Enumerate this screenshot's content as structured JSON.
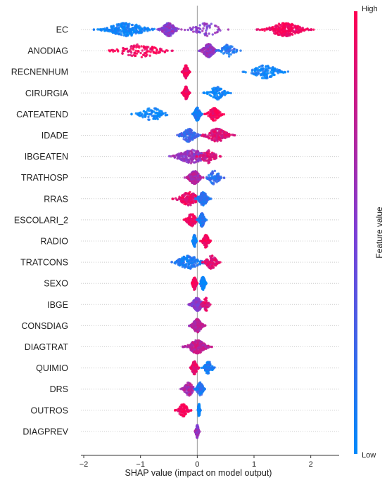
{
  "chart_data": {
    "type": "scatter",
    "subtype": "shap-beeswarm",
    "xlabel": "SHAP value (impact on model output)",
    "xlim": [
      -2.05,
      2.5
    ],
    "xticks": [
      -2,
      -1,
      0,
      1,
      2
    ],
    "tick_labels": [
      "−2",
      "−1",
      "0",
      "1",
      "2"
    ],
    "zero_line": true,
    "grid": false,
    "colorbar": {
      "label": "Feature value",
      "high_label": "High",
      "low_label": "Low",
      "low_color": "#008afb",
      "mid_color": "#7c3fd6",
      "high_color": "#ff0052"
    },
    "features": [
      {
        "name": "EC",
        "clusters": [
          {
            "x": -1.25,
            "spread": 0.4,
            "value": 0.05,
            "count": 260
          },
          {
            "x": -0.5,
            "spread": 0.14,
            "value": 0.55,
            "count": 190
          },
          {
            "x": 0.15,
            "spread": 0.3,
            "value": 0.55,
            "count": 60
          },
          {
            "x": 1.55,
            "spread": 0.35,
            "value": 0.97,
            "count": 260
          }
        ]
      },
      {
        "name": "ANODIAG",
        "clusters": [
          {
            "x": -1.0,
            "spread": 0.45,
            "value": 0.97,
            "count": 120
          },
          {
            "x": 0.2,
            "spread": 0.12,
            "value": 0.6,
            "count": 170
          },
          {
            "x": 0.55,
            "spread": 0.15,
            "value": 0.15,
            "count": 60
          }
        ]
      },
      {
        "name": "RECNENHUM",
        "clusters": [
          {
            "x": -0.2,
            "spread": 0.05,
            "value": 0.97,
            "count": 160
          },
          {
            "x": 1.2,
            "spread": 0.28,
            "value": 0.03,
            "count": 120
          }
        ]
      },
      {
        "name": "CIRURGIA",
        "clusters": [
          {
            "x": -0.2,
            "spread": 0.05,
            "value": 0.97,
            "count": 140
          },
          {
            "x": 0.35,
            "spread": 0.17,
            "value": 0.03,
            "count": 90
          }
        ]
      },
      {
        "name": "CATEATEND",
        "clusters": [
          {
            "x": -0.8,
            "spread": 0.25,
            "value": 0.03,
            "count": 90
          },
          {
            "x": 0.0,
            "spread": 0.06,
            "value": 0.08,
            "count": 200
          },
          {
            "x": 0.3,
            "spread": 0.12,
            "value": 0.97,
            "count": 110
          }
        ]
      },
      {
        "name": "IDADE",
        "clusters": [
          {
            "x": -0.15,
            "spread": 0.15,
            "value": 0.25,
            "count": 140
          },
          {
            "x": 0.35,
            "spread": 0.22,
            "value": 0.85,
            "count": 180
          }
        ]
      },
      {
        "name": "IBGEATEN",
        "clusters": [
          {
            "x": -0.1,
            "spread": 0.3,
            "value": 0.6,
            "count": 220
          },
          {
            "x": 0.2,
            "spread": 0.15,
            "value": 0.85,
            "count": 90
          }
        ]
      },
      {
        "name": "TRATHOSP",
        "clusters": [
          {
            "x": -0.05,
            "spread": 0.12,
            "value": 0.7,
            "count": 200
          },
          {
            "x": 0.3,
            "spread": 0.14,
            "value": 0.2,
            "count": 80
          }
        ]
      },
      {
        "name": "RRAS",
        "clusters": [
          {
            "x": -0.15,
            "spread": 0.2,
            "value": 0.92,
            "count": 160
          },
          {
            "x": 0.1,
            "spread": 0.1,
            "value": 0.15,
            "count": 130
          }
        ]
      },
      {
        "name": "ESCOLARI_2",
        "clusters": [
          {
            "x": -0.1,
            "spread": 0.1,
            "value": 0.95,
            "count": 110
          },
          {
            "x": 0.08,
            "spread": 0.06,
            "value": 0.15,
            "count": 130
          }
        ]
      },
      {
        "name": "RADIO",
        "clusters": [
          {
            "x": -0.05,
            "spread": 0.03,
            "value": 0.03,
            "count": 110
          },
          {
            "x": 0.15,
            "spread": 0.07,
            "value": 0.97,
            "count": 100
          }
        ]
      },
      {
        "name": "TRATCONS",
        "clusters": [
          {
            "x": -0.15,
            "spread": 0.25,
            "value": 0.1,
            "count": 170
          },
          {
            "x": 0.25,
            "spread": 0.12,
            "value": 0.9,
            "count": 110
          }
        ]
      },
      {
        "name": "SEXO",
        "clusters": [
          {
            "x": -0.05,
            "spread": 0.04,
            "value": 0.97,
            "count": 120
          },
          {
            "x": 0.1,
            "spread": 0.05,
            "value": 0.03,
            "count": 120
          }
        ]
      },
      {
        "name": "IBGE",
        "clusters": [
          {
            "x": 0.0,
            "spread": 0.11,
            "value": 0.55,
            "count": 220
          },
          {
            "x": 0.15,
            "spread": 0.07,
            "value": 0.85,
            "count": 60
          }
        ]
      },
      {
        "name": "CONSDIAG",
        "clusters": [
          {
            "x": 0.0,
            "spread": 0.1,
            "value": 0.7,
            "count": 230
          }
        ]
      },
      {
        "name": "DIAGTRAT",
        "clusters": [
          {
            "x": 0.0,
            "spread": 0.18,
            "value": 0.75,
            "count": 230
          }
        ]
      },
      {
        "name": "QUIMIO",
        "clusters": [
          {
            "x": -0.05,
            "spread": 0.06,
            "value": 0.9,
            "count": 120
          },
          {
            "x": 0.2,
            "spread": 0.09,
            "value": 0.1,
            "count": 90
          }
        ]
      },
      {
        "name": "DRS",
        "clusters": [
          {
            "x": -0.15,
            "spread": 0.1,
            "value": 0.7,
            "count": 100
          },
          {
            "x": 0.05,
            "spread": 0.07,
            "value": 0.15,
            "count": 120
          }
        ]
      },
      {
        "name": "OUTROS",
        "clusters": [
          {
            "x": -0.25,
            "spread": 0.1,
            "value": 0.97,
            "count": 90
          },
          {
            "x": 0.03,
            "spread": 0.02,
            "value": 0.03,
            "count": 90
          }
        ]
      },
      {
        "name": "DIAGPREV",
        "clusters": [
          {
            "x": 0.0,
            "spread": 0.03,
            "value": 0.6,
            "count": 130
          }
        ]
      }
    ]
  }
}
